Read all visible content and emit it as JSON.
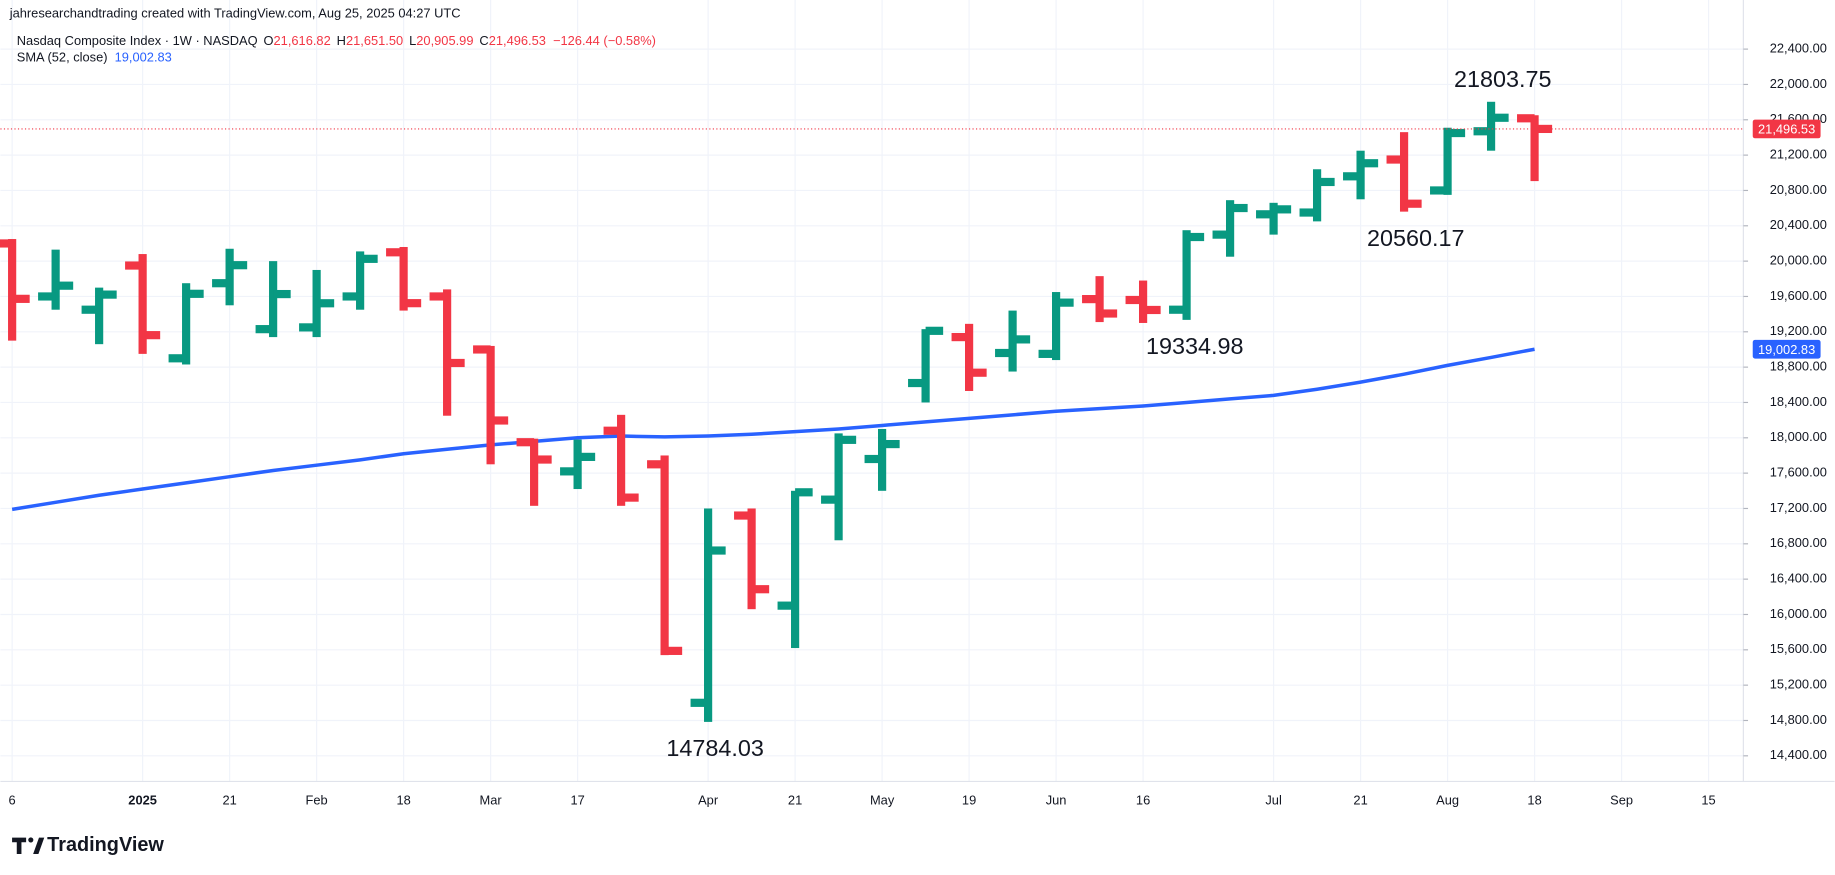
{
  "watermark": "jahresearchandtrading created with TradingView.com, Aug 25, 2025 04:27 UTC",
  "legend": {
    "symbol": "Nasdaq Composite Index · 1W · NASDAQ",
    "open_label": "O",
    "open": "21,616.82",
    "high_label": "H",
    "high": "21,651.50",
    "low_label": "L",
    "low": "20,905.99",
    "close_label": "C",
    "close": "21,496.53",
    "change": "−126.44 (−0.58%)",
    "indicator_value": "19,002.83"
  },
  "branding": "TradingView",
  "chart_data": {
    "type": "ohlc",
    "series": [
      {
        "type": "ohlc",
        "up_color": "#089981",
        "down_color": "#f23645",
        "open": [
          20200,
          19600,
          19450,
          19950,
          18900,
          19750,
          19230,
          19250,
          19600,
          20100,
          19600,
          19000,
          17950,
          17620,
          18080,
          17700,
          15000,
          17120,
          16100,
          17300,
          17760,
          18620,
          19140,
          18960,
          18950,
          19570,
          19560,
          19450,
          20300,
          20530,
          20550,
          20960,
          21150,
          20800,
          21470,
          21616.82
        ],
        "high": [
          20250,
          20130,
          19700,
          20080,
          19750,
          20140,
          20000,
          19900,
          20110,
          20160,
          19680,
          19040,
          17990,
          17980,
          18260,
          17800,
          17200,
          17200,
          17400,
          18050,
          18100,
          19230,
          19290,
          19440,
          19650,
          19830,
          19780,
          20350,
          20690,
          20660,
          21040,
          21250,
          21460,
          21510,
          21803.75,
          21651.5
        ],
        "low": [
          19100,
          19450,
          19060,
          18950,
          18830,
          19500,
          19140,
          19140,
          19450,
          19440,
          18250,
          17700,
          17230,
          17420,
          17230,
          15540,
          14784.03,
          16060,
          15620,
          16840,
          17400,
          18400,
          18530,
          18750,
          18880,
          19310,
          19300,
          19334.98,
          20050,
          20300,
          20450,
          20700,
          20560.17,
          20750,
          21250,
          20905.99
        ],
        "close": [
          19573,
          19722,
          19621,
          19162,
          19630,
          19954,
          19627,
          19523,
          20026,
          19524,
          18847,
          18196,
          17754,
          17784,
          17323,
          15588,
          16724,
          16286,
          17383,
          17977,
          17929,
          19211,
          18737,
          19114,
          19530,
          19407,
          19447,
          20273,
          20601,
          20586,
          20896,
          21108,
          20650,
          21450,
          21623,
          21496.53
        ],
        "last_label": "21,496.53"
      },
      {
        "type": "line",
        "name": "SMA (52, close)",
        "color": "#2962ff",
        "values": [
          17190,
          17270,
          17350,
          17420,
          17490,
          17560,
          17630,
          17690,
          17750,
          17820,
          17870,
          17920,
          17960,
          18000,
          18020,
          18010,
          18020,
          18040,
          18070,
          18100,
          18140,
          18180,
          18220,
          18260,
          18300,
          18330,
          18360,
          18400,
          18440,
          18480,
          18550,
          18630,
          18720,
          18820,
          18910,
          19002.83
        ],
        "last_label": "19,002.83"
      }
    ],
    "ylim": [
      14150,
      22850
    ],
    "yticks": [
      {
        "value": 14400,
        "label": "14,400.00"
      },
      {
        "value": 14800,
        "label": "14,800.00"
      },
      {
        "value": 15200,
        "label": "15,200.00"
      },
      {
        "value": 15600,
        "label": "15,600.00"
      },
      {
        "value": 16000,
        "label": "16,000.00"
      },
      {
        "value": 16400,
        "label": "16,400.00"
      },
      {
        "value": 16800,
        "label": "16,800.00"
      },
      {
        "value": 17200,
        "label": "17,200.00"
      },
      {
        "value": 17600,
        "label": "17,600.00"
      },
      {
        "value": 18000,
        "label": "18,000.00"
      },
      {
        "value": 18400,
        "label": "18,400.00"
      },
      {
        "value": 18800,
        "label": "18,800.00"
      },
      {
        "value": 19200,
        "label": "19,200.00"
      },
      {
        "value": 19600,
        "label": "19,600.00"
      },
      {
        "value": 20000,
        "label": "20,000.00"
      },
      {
        "value": 20400,
        "label": "20,400.00"
      },
      {
        "value": 20800,
        "label": "20,800.00"
      },
      {
        "value": 21200,
        "label": "21,200.00"
      },
      {
        "value": 21600,
        "label": "21,600.00"
      },
      {
        "value": 22000,
        "label": "22,000.00"
      },
      {
        "value": 22400,
        "label": "22,400.00"
      }
    ],
    "xlim": [
      -0.27,
      39.8
    ],
    "xticks": [
      {
        "value": 0,
        "label": "6"
      },
      {
        "value": 3,
        "label": "2025"
      },
      {
        "value": 5,
        "label": "21"
      },
      {
        "value": 7,
        "label": "Feb"
      },
      {
        "value": 9,
        "label": "18"
      },
      {
        "value": 11,
        "label": "Mar"
      },
      {
        "value": 13,
        "label": "17"
      },
      {
        "value": 16,
        "label": "Apr"
      },
      {
        "value": 18,
        "label": "21"
      },
      {
        "value": 20,
        "label": "May"
      },
      {
        "value": 22,
        "label": "19"
      },
      {
        "value": 24,
        "label": "Jun"
      },
      {
        "value": 26,
        "label": "16"
      },
      {
        "value": 29,
        "label": "Jul"
      },
      {
        "value": 31,
        "label": "21"
      },
      {
        "value": 33,
        "label": "Aug"
      },
      {
        "value": 35,
        "label": "18"
      },
      {
        "value": 37,
        "label": "Sep"
      },
      {
        "value": 39,
        "label": "15"
      }
    ],
    "grid": true
  }
}
